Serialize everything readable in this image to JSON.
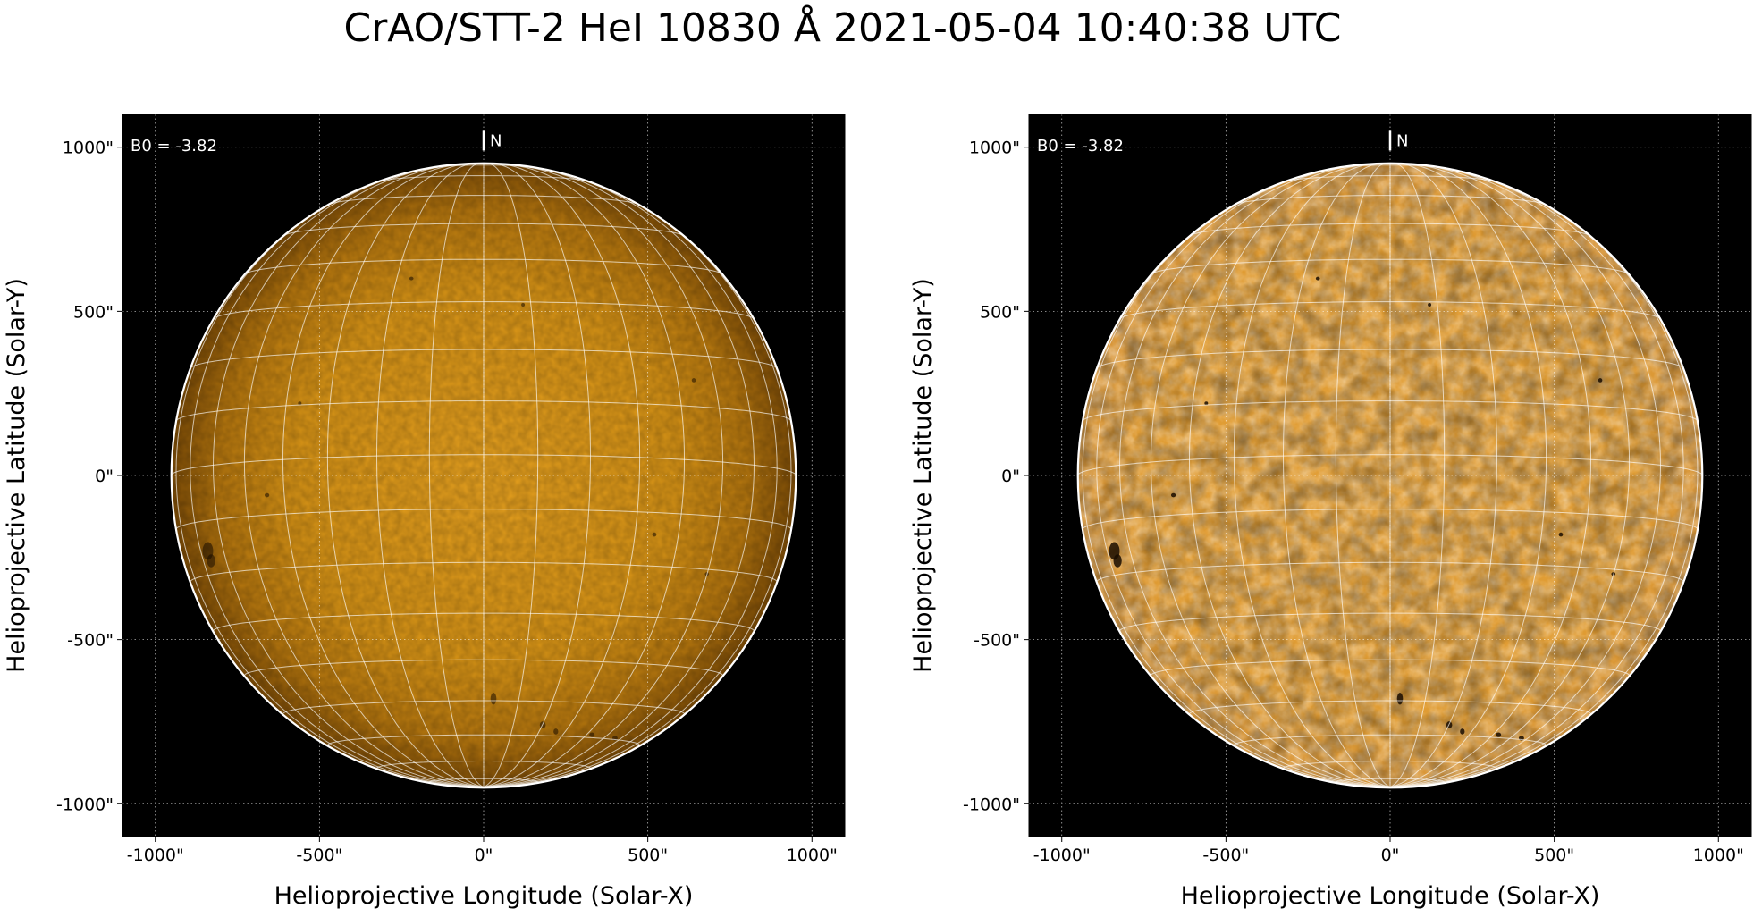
{
  "title": "CrAO/STT-2 HeI 10830 Å 2021-05-04 10:40:38 UTC",
  "colors": {
    "sky": "#000000",
    "disk_center": "#e39a1a",
    "disk_limb": "#8a5608",
    "grid": "#ffffff"
  },
  "panels": [
    {
      "b0_label": "B0 = -3.82",
      "north_label": "N",
      "xlabel": "Helioprojective Longitude (Solar-X)",
      "ylabel": "Helioprojective Latitude (Solar-Y)",
      "xticks": [
        "-1000\"",
        "-500\"",
        "0\"",
        "500\"",
        "1000\""
      ],
      "yticks": [
        "1000\"",
        "500\"",
        "0\"",
        "-500\"",
        "-1000\""
      ],
      "style": "limb-darkened"
    },
    {
      "b0_label": "B0 = -3.82",
      "north_label": "N",
      "xlabel": "Helioprojective Longitude (Solar-X)",
      "ylabel": "Helioprojective Latitude (Solar-Y)",
      "xticks": [
        "-1000\"",
        "-500\"",
        "0\"",
        "500\"",
        "1000\""
      ],
      "yticks": [
        "1000\"",
        "500\"",
        "0\"",
        "-500\"",
        "-1000\""
      ],
      "style": "limb-corrected"
    }
  ]
}
